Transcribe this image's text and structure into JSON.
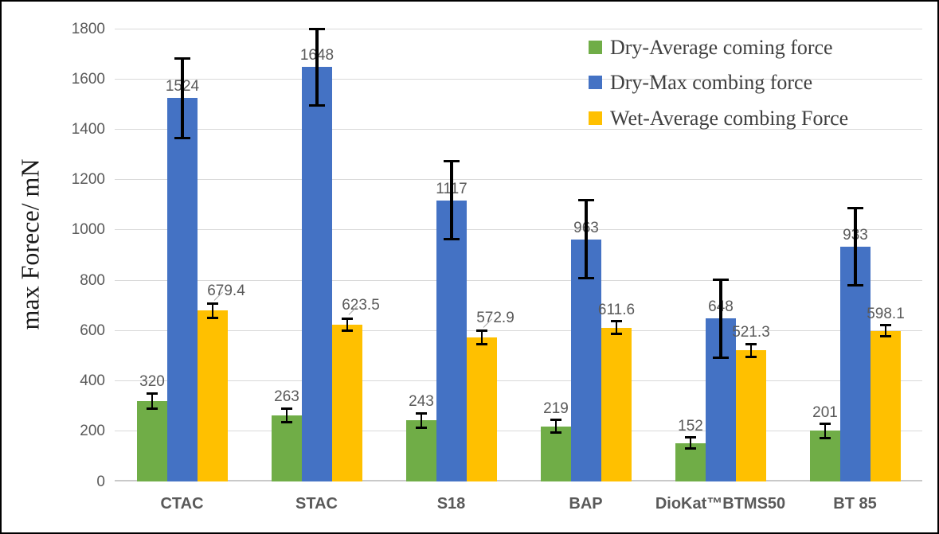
{
  "chart_data": {
    "type": "bar",
    "title": "",
    "xlabel": "",
    "ylabel": "max Forece/ mN",
    "ylim": [
      0,
      1800
    ],
    "ytick_step": 200,
    "yticks": [
      "0",
      "200",
      "400",
      "600",
      "800",
      "1000",
      "1200",
      "1400",
      "1600",
      "1800"
    ],
    "grid": true,
    "legend_position": "top-right-inside",
    "categories": [
      "CTAC",
      "STAC",
      "S18",
      "BAP",
      "DioKat™BTMS50",
      "BT 85"
    ],
    "series": [
      {
        "name": "Dry-Average coming force",
        "color": "#70AD47",
        "values": [
          320,
          263,
          243,
          219,
          152,
          201
        ],
        "labels": [
          "320",
          "263",
          "243",
          "219",
          "152",
          "201"
        ],
        "errors": [
          30,
          28,
          28,
          25,
          22,
          28
        ]
      },
      {
        "name": "Dry-Max combing force",
        "color": "#4472C4",
        "values": [
          1524,
          1648,
          1117,
          963,
          648,
          933
        ],
        "labels": [
          "1524",
          "1648",
          "1117",
          "963",
          "648",
          "933"
        ],
        "errors": [
          158,
          152,
          155,
          155,
          155,
          153
        ]
      },
      {
        "name": "Wet-Average combing Force",
        "color": "#FFC000",
        "values": [
          679.4,
          623.5,
          572.9,
          611.6,
          521.3,
          598.1
        ],
        "labels": [
          "679.4",
          "623.5",
          "572.9",
          "611.6",
          "521.3",
          "598.1"
        ],
        "errors": [
          28,
          25,
          28,
          25,
          25,
          22
        ],
        "label_leader_lines": [
          true,
          true,
          true,
          false,
          false,
          false
        ]
      }
    ],
    "colors": {
      "grid": "#D9D9D9",
      "axis_text": "#595959",
      "error_bar": "#000000",
      "leader_line": "#A6A6A6",
      "legend_text": "#404040",
      "border": "#000000"
    }
  }
}
